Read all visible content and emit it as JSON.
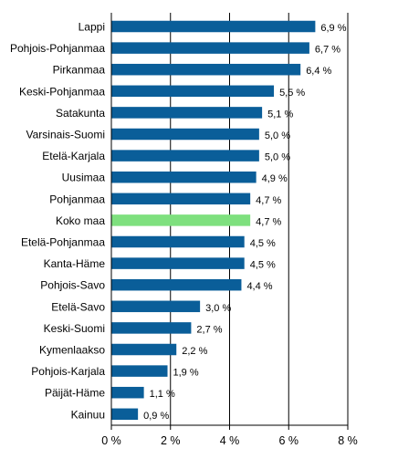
{
  "chart_data": {
    "type": "bar",
    "orientation": "horizontal",
    "categories": [
      "Lappi",
      "Pohjois-Pohjanmaa",
      "Pirkanmaa",
      "Keski-Pohjanmaa",
      "Satakunta",
      "Varsinais-Suomi",
      "Etelä-Karjala",
      "Uusimaa",
      "Pohjanmaa",
      "Koko maa",
      "Etelä-Pohjanmaa",
      "Kanta-Häme",
      "Pohjois-Savo",
      "Etelä-Savo",
      "Keski-Suomi",
      "Kymenlaakso",
      "Pohjois-Karjala",
      "Päijät-Häme",
      "Kainuu"
    ],
    "values": [
      6.9,
      6.7,
      6.4,
      5.5,
      5.1,
      5.0,
      5.0,
      4.9,
      4.7,
      4.7,
      4.5,
      4.5,
      4.4,
      3.0,
      2.7,
      2.2,
      1.9,
      1.1,
      0.9
    ],
    "value_labels": [
      "6,9 %",
      "6,7 %",
      "6,4 %",
      "5,5 %",
      "5,1 %",
      "5,0 %",
      "5,0 %",
      "4,9 %",
      "4,7 %",
      "4,7 %",
      "4,5 %",
      "4,5 %",
      "4,4 %",
      "3,0 %",
      "2,7 %",
      "2,2 %",
      "1,9 %",
      "1,1 %",
      "0,9 %"
    ],
    "highlight_category": "Koko maa",
    "xlim": [
      0,
      8
    ],
    "x_ticks": [
      0,
      2,
      4,
      6,
      8
    ],
    "x_tick_labels": [
      "0 %",
      "2 %",
      "4 %",
      "6 %",
      "8 %"
    ],
    "grid": "vertical",
    "legend": "none",
    "colors": {
      "bar": "#0a5e99",
      "highlight": "#7ee07e",
      "grid": "#000000"
    }
  }
}
